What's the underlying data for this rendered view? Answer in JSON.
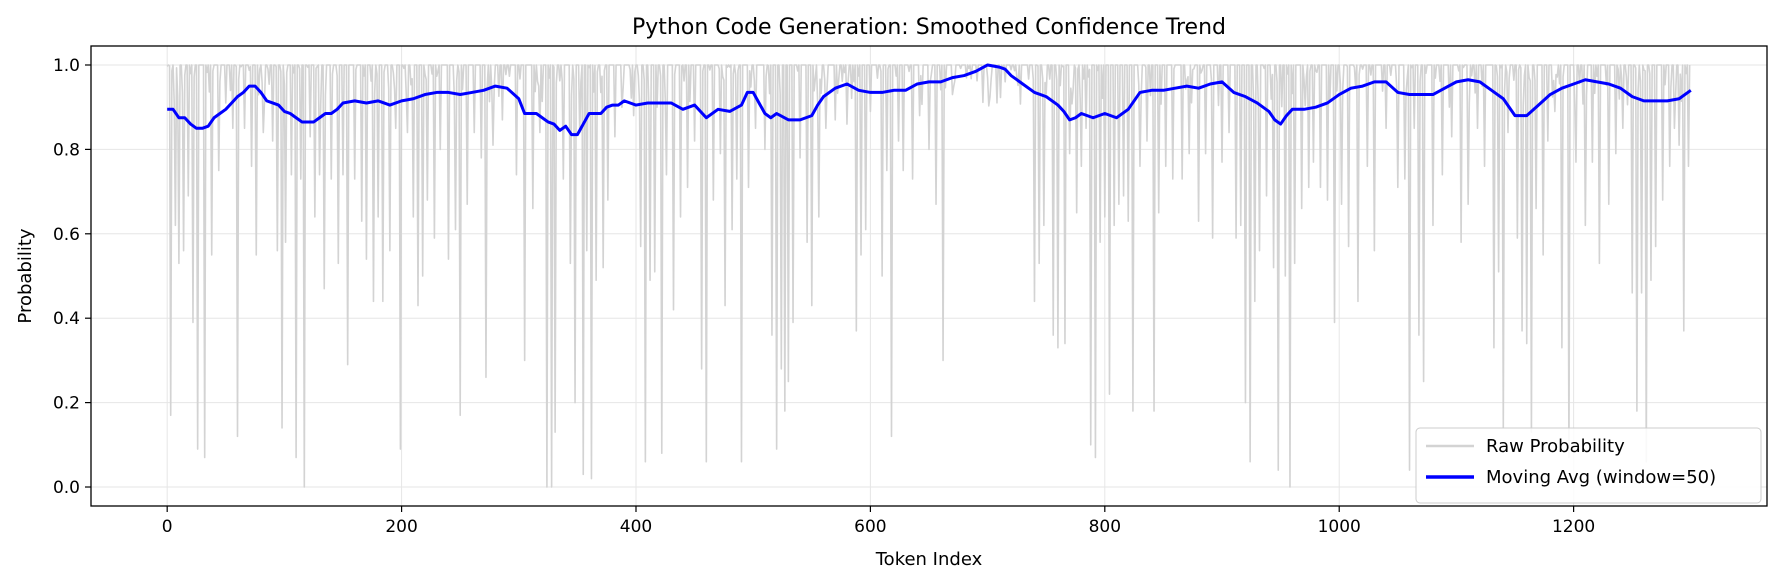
{
  "chart_data": {
    "type": "line",
    "title": "Python Code Generation: Smoothed Confidence Trend",
    "xlabel": "Token Index",
    "ylabel": "Probability",
    "xlim": [
      -65,
      1365
    ],
    "ylim": [
      -0.045,
      1.045
    ],
    "x_ticks": [
      0,
      200,
      400,
      600,
      800,
      1000,
      1200
    ],
    "y_ticks": [
      0.0,
      0.2,
      0.4,
      0.6,
      0.8,
      1.0
    ],
    "y_tick_labels": [
      "0.0",
      "0.2",
      "0.4",
      "0.6",
      "0.8",
      "1.0"
    ],
    "grid": true,
    "legend_position": "bottom-right",
    "n_tokens": 1300,
    "series": [
      {
        "name": "Raw Probability",
        "color": "#d3d3d3",
        "dips": [
          [
            3,
            0.17
          ],
          [
            7,
            0.62
          ],
          [
            10,
            0.53
          ],
          [
            14,
            0.56
          ],
          [
            18,
            0.69
          ],
          [
            22,
            0.39
          ],
          [
            26,
            0.09
          ],
          [
            32,
            0.07
          ],
          [
            38,
            0.55
          ],
          [
            44,
            0.75
          ],
          [
            50,
            0.91
          ],
          [
            56,
            0.85
          ],
          [
            60,
            0.12
          ],
          [
            66,
            0.85
          ],
          [
            72,
            0.76
          ],
          [
            76,
            0.55
          ],
          [
            82,
            0.84
          ],
          [
            90,
            0.82
          ],
          [
            94,
            0.56
          ],
          [
            98,
            0.14
          ],
          [
            101,
            0.58
          ],
          [
            106,
            0.74
          ],
          [
            110,
            0.07
          ],
          [
            114,
            0.73
          ],
          [
            117,
            0.0
          ],
          [
            122,
            0.83
          ],
          [
            126,
            0.64
          ],
          [
            130,
            0.74
          ],
          [
            134,
            0.47
          ],
          [
            140,
            0.73
          ],
          [
            146,
            0.53
          ],
          [
            150,
            0.74
          ],
          [
            154,
            0.29
          ],
          [
            160,
            0.73
          ],
          [
            166,
            0.63
          ],
          [
            170,
            0.54
          ],
          [
            176,
            0.44
          ],
          [
            180,
            0.64
          ],
          [
            184,
            0.44
          ],
          [
            190,
            0.56
          ],
          [
            195,
            0.85
          ],
          [
            199,
            0.09
          ],
          [
            205,
            0.84
          ],
          [
            210,
            0.64
          ],
          [
            214,
            0.43
          ],
          [
            218,
            0.5
          ],
          [
            222,
            0.68
          ],
          [
            228,
            0.59
          ],
          [
            233,
            0.8
          ],
          [
            240,
            0.54
          ],
          [
            246,
            0.61
          ],
          [
            250,
            0.17
          ],
          [
            256,
            0.67
          ],
          [
            262,
            0.84
          ],
          [
            268,
            0.78
          ],
          [
            272,
            0.26
          ],
          [
            278,
            0.81
          ],
          [
            286,
            0.87
          ],
          [
            298,
            0.74
          ],
          [
            305,
            0.3
          ],
          [
            312,
            0.66
          ],
          [
            318,
            0.84
          ],
          [
            324,
            0.0
          ],
          [
            328,
            0.0
          ],
          [
            331,
            0.13
          ],
          [
            338,
            0.73
          ],
          [
            344,
            0.53
          ],
          [
            348,
            0.2
          ],
          [
            352,
            0.84
          ],
          [
            355,
            0.03
          ],
          [
            358,
            0.56
          ],
          [
            362,
            0.02
          ],
          [
            366,
            0.49
          ],
          [
            372,
            0.52
          ],
          [
            376,
            0.68
          ],
          [
            382,
            0.83
          ],
          [
            388,
            0.9
          ],
          [
            398,
            0.88
          ],
          [
            404,
            0.57
          ],
          [
            408,
            0.06
          ],
          [
            412,
            0.49
          ],
          [
            416,
            0.51
          ],
          [
            422,
            0.08
          ],
          [
            426,
            0.74
          ],
          [
            432,
            0.42
          ],
          [
            438,
            0.64
          ],
          [
            444,
            0.71
          ],
          [
            450,
            0.82
          ],
          [
            456,
            0.28
          ],
          [
            460,
            0.06
          ],
          [
            466,
            0.68
          ],
          [
            472,
            0.79
          ],
          [
            476,
            0.43
          ],
          [
            482,
            0.61
          ],
          [
            486,
            0.73
          ],
          [
            490,
            0.06
          ],
          [
            496,
            0.71
          ],
          [
            502,
            0.85
          ],
          [
            510,
            0.8
          ],
          [
            516,
            0.36
          ],
          [
            520,
            0.09
          ],
          [
            524,
            0.28
          ],
          [
            527,
            0.18
          ],
          [
            530,
            0.25
          ],
          [
            534,
            0.39
          ],
          [
            540,
            0.78
          ],
          [
            546,
            0.58
          ],
          [
            550,
            0.43
          ],
          [
            556,
            0.64
          ],
          [
            562,
            0.85
          ],
          [
            570,
            0.87
          ],
          [
            580,
            0.86
          ],
          [
            588,
            0.37
          ],
          [
            592,
            0.55
          ],
          [
            596,
            0.61
          ],
          [
            600,
            0.89
          ],
          [
            610,
            0.5
          ],
          [
            614,
            0.75
          ],
          [
            618,
            0.12
          ],
          [
            624,
            0.82
          ],
          [
            628,
            0.75
          ],
          [
            636,
            0.73
          ],
          [
            642,
            0.88
          ],
          [
            650,
            0.8
          ],
          [
            656,
            0.67
          ],
          [
            662,
            0.3
          ],
          [
            670,
            0.93
          ],
          [
            700,
            0.97
          ],
          [
            715,
            0.96
          ],
          [
            740,
            0.44
          ],
          [
            744,
            0.53
          ],
          [
            748,
            0.62
          ],
          [
            756,
            0.36
          ],
          [
            760,
            0.33
          ],
          [
            766,
            0.34
          ],
          [
            770,
            0.79
          ],
          [
            776,
            0.65
          ],
          [
            780,
            0.76
          ],
          [
            784,
            0.85
          ],
          [
            788,
            0.1
          ],
          [
            792,
            0.07
          ],
          [
            796,
            0.58
          ],
          [
            800,
            0.64
          ],
          [
            804,
            0.22
          ],
          [
            808,
            0.62
          ],
          [
            812,
            0.67
          ],
          [
            816,
            0.69
          ],
          [
            820,
            0.63
          ],
          [
            824,
            0.18
          ],
          [
            830,
            0.76
          ],
          [
            836,
            0.82
          ],
          [
            842,
            0.18
          ],
          [
            846,
            0.65
          ],
          [
            852,
            0.76
          ],
          [
            858,
            0.73
          ],
          [
            866,
            0.73
          ],
          [
            872,
            0.79
          ],
          [
            880,
            0.63
          ],
          [
            886,
            0.79
          ],
          [
            892,
            0.59
          ],
          [
            900,
            0.77
          ],
          [
            906,
            0.84
          ],
          [
            912,
            0.59
          ],
          [
            916,
            0.62
          ],
          [
            920,
            0.2
          ],
          [
            924,
            0.06
          ],
          [
            928,
            0.44
          ],
          [
            932,
            0.56
          ],
          [
            938,
            0.69
          ],
          [
            944,
            0.52
          ],
          [
            948,
            0.04
          ],
          [
            954,
            0.5
          ],
          [
            958,
            0.0
          ],
          [
            962,
            0.53
          ],
          [
            968,
            0.66
          ],
          [
            974,
            0.71
          ],
          [
            978,
            0.77
          ],
          [
            984,
            0.71
          ],
          [
            990,
            0.68
          ],
          [
            996,
            0.39
          ],
          [
            1002,
            0.67
          ],
          [
            1008,
            0.57
          ],
          [
            1016,
            0.44
          ],
          [
            1024,
            0.76
          ],
          [
            1030,
            0.56
          ],
          [
            1040,
            0.85
          ],
          [
            1050,
            0.71
          ],
          [
            1056,
            0.73
          ],
          [
            1060,
            0.04
          ],
          [
            1064,
            0.85
          ],
          [
            1068,
            0.36
          ],
          [
            1072,
            0.25
          ],
          [
            1080,
            0.62
          ],
          [
            1088,
            0.74
          ],
          [
            1096,
            0.83
          ],
          [
            1104,
            0.58
          ],
          [
            1110,
            0.67
          ],
          [
            1118,
            0.85
          ],
          [
            1124,
            0.76
          ],
          [
            1132,
            0.33
          ],
          [
            1136,
            0.51
          ],
          [
            1140,
            0.14
          ],
          [
            1144,
            0.84
          ],
          [
            1152,
            0.59
          ],
          [
            1156,
            0.37
          ],
          [
            1160,
            0.34
          ],
          [
            1164,
            0.13
          ],
          [
            1168,
            0.66
          ],
          [
            1174,
            0.55
          ],
          [
            1178,
            0.82
          ],
          [
            1184,
            0.89
          ],
          [
            1190,
            0.33
          ],
          [
            1196,
            0.07
          ],
          [
            1202,
            0.77
          ],
          [
            1210,
            0.62
          ],
          [
            1216,
            0.77
          ],
          [
            1222,
            0.53
          ],
          [
            1230,
            0.67
          ],
          [
            1236,
            0.79
          ],
          [
            1242,
            0.85
          ],
          [
            1250,
            0.46
          ],
          [
            1254,
            0.18
          ],
          [
            1258,
            0.46
          ],
          [
            1262,
            0.06
          ],
          [
            1266,
            0.49
          ],
          [
            1270,
            0.57
          ],
          [
            1276,
            0.68
          ],
          [
            1282,
            0.76
          ],
          [
            1286,
            0.85
          ],
          [
            1290,
            0.81
          ],
          [
            1294,
            0.37
          ],
          [
            1298,
            0.76
          ]
        ]
      },
      {
        "name": "Moving Avg (window=50)",
        "color": "#0000ff",
        "x": [
          0,
          5,
          10,
          15,
          20,
          25,
          30,
          35,
          40,
          45,
          50,
          55,
          60,
          65,
          70,
          75,
          80,
          85,
          90,
          95,
          100,
          105,
          110,
          115,
          120,
          125,
          130,
          135,
          140,
          145,
          150,
          160,
          170,
          180,
          190,
          200,
          210,
          220,
          230,
          240,
          250,
          260,
          270,
          280,
          290,
          300,
          305,
          310,
          315,
          320,
          325,
          330,
          335,
          340,
          345,
          350,
          355,
          360,
          365,
          370,
          375,
          380,
          385,
          390,
          400,
          410,
          420,
          430,
          440,
          450,
          460,
          470,
          480,
          490,
          495,
          500,
          505,
          510,
          515,
          520,
          530,
          540,
          550,
          555,
          560,
          570,
          580,
          590,
          600,
          610,
          620,
          630,
          640,
          650,
          660,
          670,
          680,
          690,
          700,
          710,
          715,
          720,
          730,
          740,
          750,
          760,
          765,
          770,
          775,
          780,
          790,
          800,
          810,
          820,
          830,
          840,
          850,
          860,
          870,
          880,
          890,
          900,
          910,
          920,
          930,
          940,
          945,
          950,
          955,
          960,
          970,
          980,
          990,
          1000,
          1010,
          1020,
          1030,
          1040,
          1050,
          1060,
          1070,
          1080,
          1090,
          1100,
          1110,
          1120,
          1130,
          1140,
          1150,
          1160,
          1170,
          1180,
          1190,
          1200,
          1210,
          1220,
          1230,
          1240,
          1250,
          1260,
          1270,
          1280,
          1290,
          1300
        ],
        "y": [
          0.895,
          0.895,
          0.875,
          0.875,
          0.86,
          0.85,
          0.85,
          0.855,
          0.875,
          0.885,
          0.895,
          0.91,
          0.925,
          0.935,
          0.95,
          0.95,
          0.935,
          0.915,
          0.91,
          0.905,
          0.89,
          0.885,
          0.875,
          0.865,
          0.865,
          0.865,
          0.875,
          0.885,
          0.885,
          0.895,
          0.91,
          0.915,
          0.91,
          0.915,
          0.905,
          0.915,
          0.92,
          0.93,
          0.935,
          0.935,
          0.93,
          0.935,
          0.94,
          0.95,
          0.945,
          0.92,
          0.885,
          0.885,
          0.885,
          0.875,
          0.865,
          0.86,
          0.845,
          0.855,
          0.835,
          0.835,
          0.86,
          0.885,
          0.885,
          0.885,
          0.9,
          0.905,
          0.905,
          0.915,
          0.905,
          0.91,
          0.91,
          0.91,
          0.895,
          0.905,
          0.875,
          0.895,
          0.89,
          0.905,
          0.935,
          0.935,
          0.91,
          0.885,
          0.875,
          0.885,
          0.87,
          0.87,
          0.88,
          0.905,
          0.925,
          0.945,
          0.955,
          0.94,
          0.935,
          0.935,
          0.94,
          0.94,
          0.955,
          0.96,
          0.96,
          0.97,
          0.975,
          0.985,
          1.0,
          0.995,
          0.99,
          0.975,
          0.955,
          0.935,
          0.925,
          0.905,
          0.89,
          0.87,
          0.875,
          0.885,
          0.875,
          0.885,
          0.875,
          0.895,
          0.935,
          0.94,
          0.94,
          0.945,
          0.95,
          0.945,
          0.955,
          0.96,
          0.935,
          0.925,
          0.91,
          0.89,
          0.87,
          0.86,
          0.88,
          0.895,
          0.895,
          0.9,
          0.91,
          0.93,
          0.945,
          0.95,
          0.96,
          0.96,
          0.935,
          0.93,
          0.93,
          0.93,
          0.945,
          0.96,
          0.965,
          0.96,
          0.94,
          0.92,
          0.88,
          0.88,
          0.905,
          0.93,
          0.945,
          0.955,
          0.965,
          0.96,
          0.955,
          0.945,
          0.925,
          0.915,
          0.915,
          0.915,
          0.92,
          0.94
        ]
      }
    ]
  }
}
